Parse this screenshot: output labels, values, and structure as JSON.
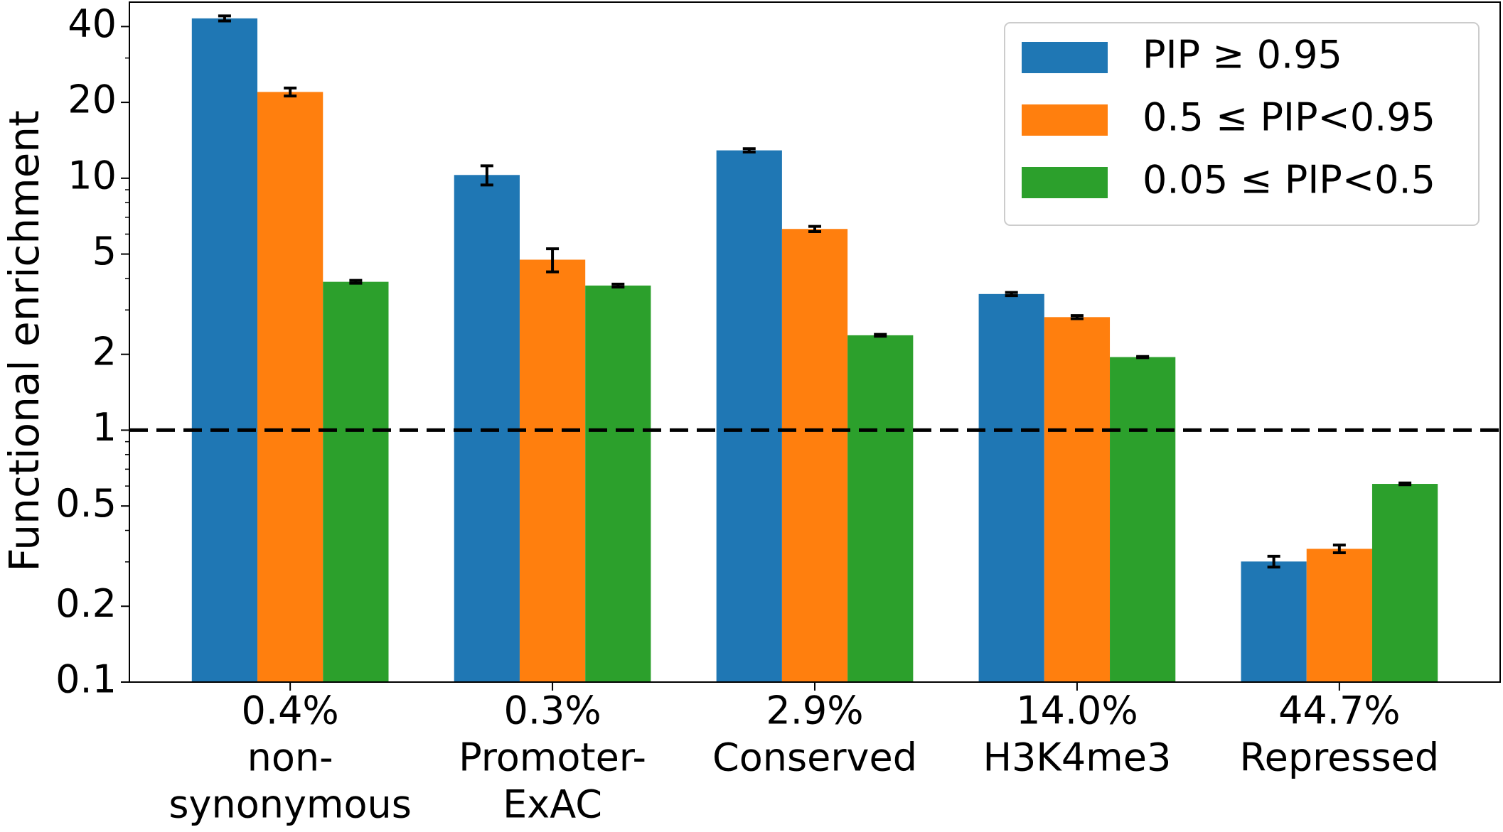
{
  "chart_data": {
    "type": "bar",
    "y_label": "Functional enrichment",
    "categories": [
      [
        "0.4%",
        "non-",
        "synonymous"
      ],
      [
        "0.3%",
        "Promoter-",
        "ExAC"
      ],
      [
        "2.9%",
        "Conserved"
      ],
      [
        "14.0%",
        "H3K4me3"
      ],
      [
        "44.7%",
        "Repressed"
      ]
    ],
    "series": [
      {
        "name": "PIP ≥ 0.95",
        "color": "#1f77b4",
        "values": [
          43.1,
          10.3,
          12.9,
          3.47,
          0.301
        ],
        "errors": [
          1.0,
          0.9,
          0.2,
          0.05,
          0.015
        ]
      },
      {
        "name": "0.5 ≤ PIP<0.95",
        "color": "#ff7f0e",
        "values": [
          22.0,
          4.75,
          6.29,
          2.81,
          0.338
        ],
        "errors": [
          0.8,
          0.5,
          0.15,
          0.04,
          0.012
        ]
      },
      {
        "name": "0.05 ≤ PIP<0.5",
        "color": "#2ca02c",
        "values": [
          3.88,
          3.75,
          2.38,
          1.95,
          0.612
        ],
        "errors": [
          0.05,
          0.05,
          0.02,
          0.01,
          0.005
        ]
      }
    ],
    "log_y": true,
    "ylim": [
      0.1,
      50
    ],
    "yticks": [
      0.1,
      0.2,
      0.5,
      1,
      2,
      5,
      10,
      20,
      40
    ],
    "yminorticks": [
      0.3,
      0.4,
      0.6,
      0.7,
      0.8,
      0.9,
      3,
      4,
      6,
      7,
      8,
      9,
      30
    ],
    "hline": 1,
    "legend": "upper right"
  }
}
